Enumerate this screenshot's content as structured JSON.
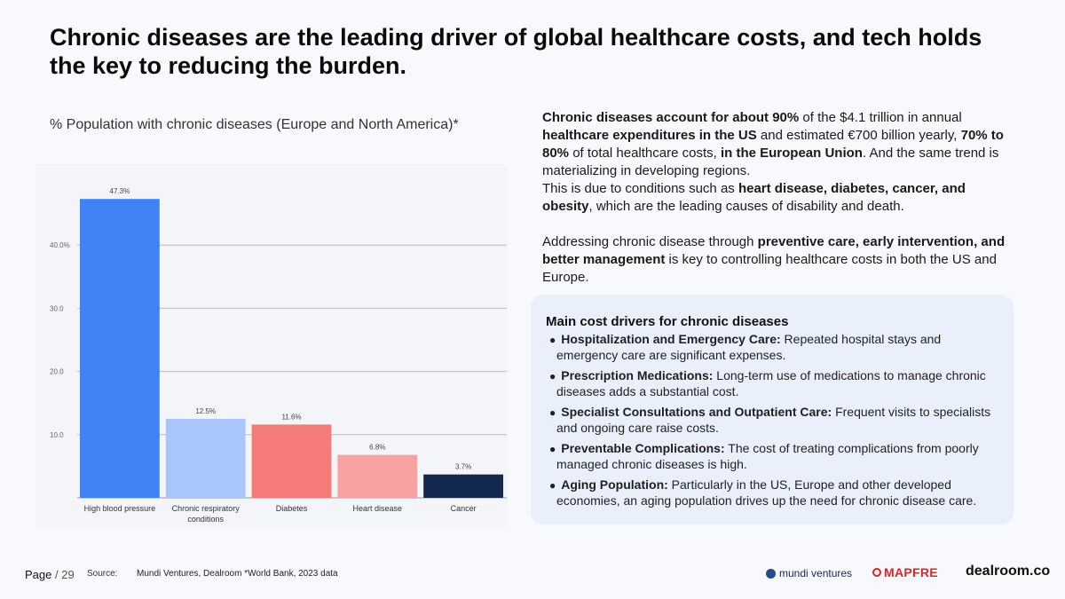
{
  "title": "Chronic diseases are the leading driver of global healthcare costs, and tech holds the key to reducing the burden.",
  "chart_subtitle": "% Population with chronic diseases (Europe and North America)*",
  "chart_data": {
    "type": "bar",
    "title": "% Population with chronic diseases (Europe and North America)*",
    "categories": [
      "High blood pressure",
      "Chronic respiratory conditions",
      "Diabetes",
      "Heart disease",
      "Cancer"
    ],
    "category_lines": [
      [
        "High blood pressure"
      ],
      [
        "Chronic respiratory",
        "conditions"
      ],
      [
        "Diabetes"
      ],
      [
        "Heart disease"
      ],
      [
        "Cancer"
      ]
    ],
    "values": [
      47.3,
      12.5,
      11.6,
      6.8,
      3.7
    ],
    "data_labels": [
      "47.3%",
      "12.5%",
      "11.6%",
      "6.8%",
      "3.7%"
    ],
    "colors": [
      "#3f83f5",
      "#a9c6fb",
      "#f57b7b",
      "#f8a3a3",
      "#13294f"
    ],
    "yticks": [
      10,
      20,
      30,
      40
    ],
    "ytick_labels": [
      "10.0",
      "20.0",
      "30.0",
      "40.0%"
    ],
    "ylim": [
      0,
      50
    ],
    "xlabel": "",
    "ylabel": "",
    "grid": true
  },
  "body_text": {
    "p1": [
      {
        "t": "Chronic diseases account for about 90%",
        "b": true
      },
      {
        "t": " of the $4.1 trillion in annual ",
        "b": false
      },
      {
        "t": "healthcare expenditures in the US",
        "b": true
      },
      {
        "t": " and estimated €700 billion yearly, ",
        "b": false
      },
      {
        "t": "70% to 80%",
        "b": true
      },
      {
        "t": " of total healthcare costs, ",
        "b": false
      },
      {
        "t": "in the European Union",
        "b": true
      },
      {
        "t": ". And the same trend is materializing in developing regions.",
        "b": false
      }
    ],
    "p2": [
      {
        "t": "This is due to conditions such as ",
        "b": false
      },
      {
        "t": "heart disease, diabetes, cancer, and obesity",
        "b": true
      },
      {
        "t": ", which are the leading causes of disability and death.",
        "b": false
      }
    ],
    "p3": [
      {
        "t": "Addressing chronic disease through ",
        "b": false
      },
      {
        "t": "preventive care, early intervention, and better management",
        "b": true
      },
      {
        "t": " is key to controlling healthcare costs in both the US and Europe.",
        "b": false
      }
    ]
  },
  "drivers": {
    "title": "Main cost drivers for chronic diseases",
    "bullet": "●",
    "items": [
      {
        "label": "Hospitalization and Emergency Care:",
        "text": " Repeated hospital stays and emergency care are significant expenses."
      },
      {
        "label": "Prescription Medications:",
        "text": " Long-term use of medications to manage chronic diseases adds a substantial cost."
      },
      {
        "label": "Specialist Consultations and Outpatient Care:",
        "text": " Frequent visits to specialists and ongoing care raise costs."
      },
      {
        "label": "Preventable Complications:",
        "text": " The cost of treating complications from poorly managed chronic diseases is high."
      },
      {
        "label": "Aging Population:",
        "text": " Particularly in the US, Europe and other developed economies, an aging population drives up the need for chronic disease care."
      }
    ]
  },
  "footer": {
    "page_label": "Page",
    "page_num": "/ 29",
    "source_label": "Source:",
    "source_text": "Mundi Ventures, Dealroom  *World Bank, 2023 data",
    "logo_mundi": "mundi ventures",
    "logo_mapfre": "MAPFRE",
    "logo_dealroom": "dealroom.co"
  }
}
